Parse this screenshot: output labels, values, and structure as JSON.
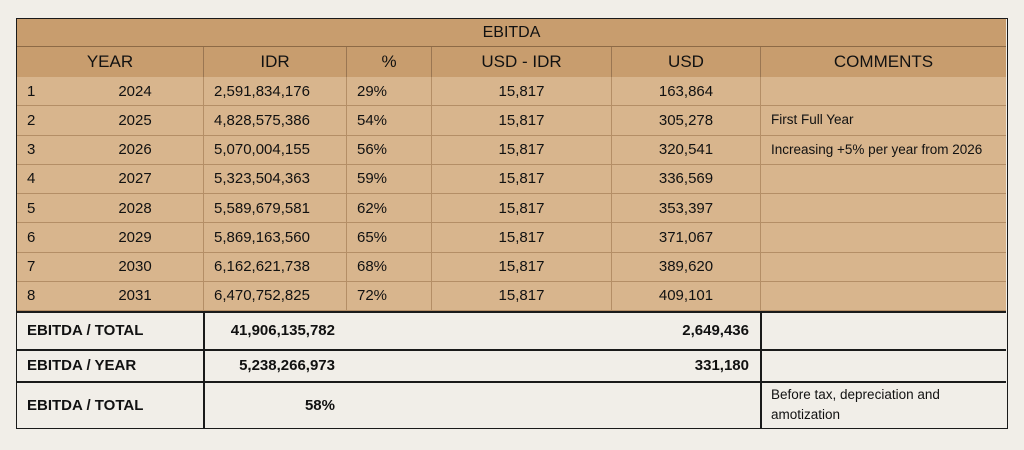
{
  "title": "EBITDA",
  "headers": [
    "YEAR",
    "IDR",
    "%",
    "USD - IDR",
    "USD",
    "COMMENTS"
  ],
  "rows": [
    {
      "n": "1",
      "year": "2024",
      "idr": "2,591,834,176",
      "pct": "29%",
      "rate": "15,817",
      "usd": "163,864",
      "comment": ""
    },
    {
      "n": "2",
      "year": "2025",
      "idr": "4,828,575,386",
      "pct": "54%",
      "rate": "15,817",
      "usd": "305,278",
      "comment": "First Full Year"
    },
    {
      "n": "3",
      "year": "2026",
      "idr": "5,070,004,155",
      "pct": "56%",
      "rate": "15,817",
      "usd": "320,541",
      "comment": "Increasing +5% per year from 2026"
    },
    {
      "n": "4",
      "year": "2027",
      "idr": "5,323,504,363",
      "pct": "59%",
      "rate": "15,817",
      "usd": "336,569",
      "comment": ""
    },
    {
      "n": "5",
      "year": "2028",
      "idr": "5,589,679,581",
      "pct": "62%",
      "rate": "15,817",
      "usd": "353,397",
      "comment": ""
    },
    {
      "n": "6",
      "year": "2029",
      "idr": "5,869,163,560",
      "pct": "65%",
      "rate": "15,817",
      "usd": "371,067",
      "comment": ""
    },
    {
      "n": "7",
      "year": "2030",
      "idr": "6,162,621,738",
      "pct": "68%",
      "rate": "15,817",
      "usd": "389,620",
      "comment": ""
    },
    {
      "n": "8",
      "year": "2031",
      "idr": "6,470,752,825",
      "pct": "72%",
      "rate": "15,817",
      "usd": "409,101",
      "comment": ""
    }
  ],
  "summary": [
    {
      "label": "EBITDA / TOTAL",
      "idr": "41,906,135,782",
      "usd": "2,649,436",
      "comment": ""
    },
    {
      "label": "EBITDA / YEAR",
      "idr": "5,238,266,973",
      "usd": "331,180",
      "comment": ""
    },
    {
      "label": "EBITDA / TOTAL",
      "idr": "58%",
      "usd": "",
      "comment": "Before tax, depreciation and amotization"
    }
  ],
  "colors": {
    "header": "#c89d6e",
    "rows": "#d8b58d",
    "background": "#f1eee8"
  }
}
